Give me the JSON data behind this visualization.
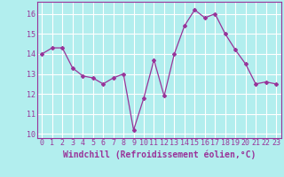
{
  "x": [
    0,
    1,
    2,
    3,
    4,
    5,
    6,
    7,
    8,
    9,
    10,
    11,
    12,
    13,
    14,
    15,
    16,
    17,
    18,
    19,
    20,
    21,
    22,
    23
  ],
  "y": [
    14.0,
    14.3,
    14.3,
    13.3,
    12.9,
    12.8,
    12.5,
    12.8,
    13.0,
    10.2,
    11.8,
    13.7,
    11.9,
    14.0,
    15.4,
    16.2,
    15.8,
    16.0,
    15.0,
    14.2,
    13.5,
    12.5,
    12.6,
    12.5
  ],
  "xlim": [
    -0.5,
    23.5
  ],
  "ylim": [
    9.8,
    16.6
  ],
  "yticks": [
    10,
    11,
    12,
    13,
    14,
    15,
    16
  ],
  "xticks": [
    0,
    1,
    2,
    3,
    4,
    5,
    6,
    7,
    8,
    9,
    10,
    11,
    12,
    13,
    14,
    15,
    16,
    17,
    18,
    19,
    20,
    21,
    22,
    23
  ],
  "xlabel": "Windchill (Refroidissement éolien,°C)",
  "line_color": "#993399",
  "marker": "D",
  "marker_size": 2,
  "bg_color": "#b2eeee",
  "grid_color": "#ffffff",
  "tick_color": "#993399",
  "label_color": "#993399",
  "tick_fontsize": 6,
  "xlabel_fontsize": 7
}
